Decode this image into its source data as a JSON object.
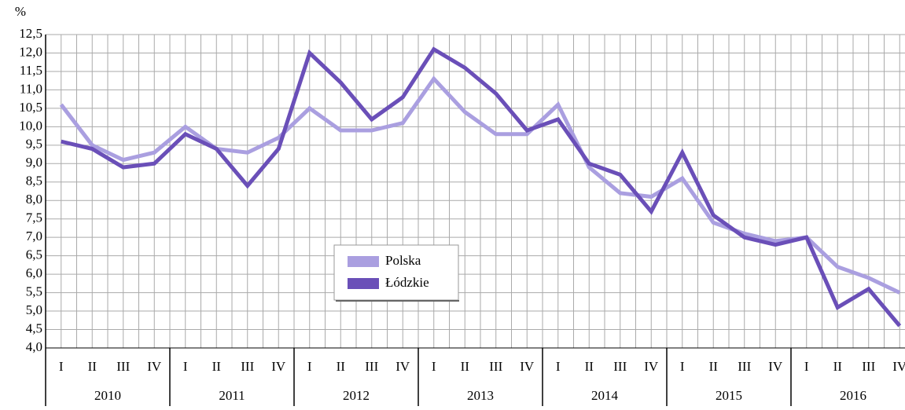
{
  "chart_data": {
    "type": "line",
    "y_label": "%",
    "categories": [
      "I",
      "II",
      "III",
      "IV",
      "I",
      "II",
      "III",
      "IV",
      "I",
      "II",
      "III",
      "IV",
      "I",
      "II",
      "III",
      "IV",
      "I",
      "II",
      "III",
      "IV",
      "I",
      "II",
      "III",
      "IV",
      "I",
      "II",
      "III",
      "IV"
    ],
    "years": [
      "2010",
      "2011",
      "2012",
      "2013",
      "2014",
      "2015",
      "2016"
    ],
    "series": [
      {
        "name": "Polska",
        "color": "#aa9fe0",
        "values": [
          10.6,
          9.5,
          9.1,
          9.3,
          10.0,
          9.4,
          9.3,
          9.7,
          10.5,
          9.9,
          9.9,
          10.1,
          11.3,
          10.4,
          9.8,
          9.8,
          10.6,
          8.9,
          8.2,
          8.1,
          8.6,
          7.4,
          7.1,
          6.9,
          7.0,
          6.2,
          5.9,
          5.5
        ]
      },
      {
        "name": "Łódzkie",
        "color": "#6a4fb8",
        "values": [
          9.6,
          9.4,
          8.9,
          9.0,
          9.8,
          9.4,
          8.4,
          9.4,
          12.0,
          11.2,
          10.2,
          10.8,
          12.1,
          11.6,
          10.9,
          9.9,
          10.2,
          9.0,
          8.7,
          7.7,
          9.3,
          7.6,
          7.0,
          6.8,
          7.0,
          5.1,
          5.6,
          4.6
        ]
      }
    ],
    "ylim": [
      4.0,
      12.5
    ],
    "yticks": [
      {
        "value": 4.0,
        "label": "4,0"
      },
      {
        "value": 4.5,
        "label": "4,5"
      },
      {
        "value": 5.0,
        "label": "5,0"
      },
      {
        "value": 5.5,
        "label": "5,5"
      },
      {
        "value": 6.0,
        "label": "6,0"
      },
      {
        "value": 6.5,
        "label": "6,5"
      },
      {
        "value": 7.0,
        "label": "7,0"
      },
      {
        "value": 7.5,
        "label": "7,5"
      },
      {
        "value": 8.0,
        "label": "8,0"
      },
      {
        "value": 8.5,
        "label": "8,5"
      },
      {
        "value": 9.0,
        "label": "9,0"
      },
      {
        "value": 9.5,
        "label": "9,5"
      },
      {
        "value": 10.0,
        "label": "10,0"
      },
      {
        "value": 10.5,
        "label": "10,5"
      },
      {
        "value": 11.0,
        "label": "11,0"
      },
      {
        "value": 11.5,
        "label": "11,5"
      },
      {
        "value": 12.0,
        "label": "12,0"
      },
      {
        "value": 12.5,
        "label": "12,5"
      }
    ],
    "grid": true
  }
}
